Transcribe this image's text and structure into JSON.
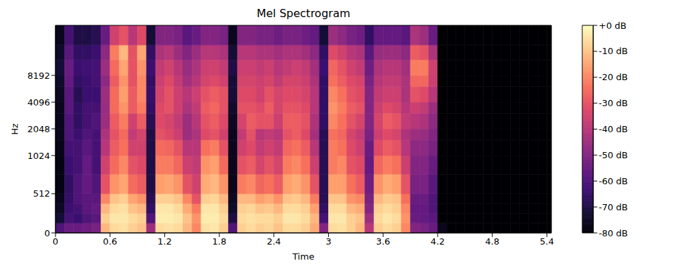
{
  "chart_data": {
    "type": "heatmap",
    "title": "Mel Spectrogram",
    "x_label": "Time",
    "y_label": "Hz",
    "color": "magma",
    "xlim": [
      0,
      5.45
    ],
    "xticks": [
      0,
      0.6,
      1.2,
      1.8,
      2.4,
      3,
      3.6,
      4.2,
      4.8,
      5.4
    ],
    "ylim": [
      0,
      30000
    ],
    "yticks": [
      0,
      512,
      1024,
      2048,
      4096,
      8192
    ],
    "x_bins": [
      0,
      0.1,
      0.2,
      0.3,
      0.4,
      0.5,
      0.6,
      0.7,
      0.8,
      0.9,
      1.0,
      1.1,
      1.2,
      1.3,
      1.4,
      1.5,
      1.6,
      1.7,
      1.8,
      1.9,
      2.0,
      2.1,
      2.2,
      2.3,
      2.4,
      2.5,
      2.6,
      2.7,
      2.8,
      2.9,
      3.0,
      3.1,
      3.2,
      3.3,
      3.4,
      3.5,
      3.6,
      3.7,
      3.8,
      3.9,
      4.0,
      4.1,
      4.2,
      4.3,
      4.4,
      4.5,
      4.6,
      4.7,
      4.8,
      4.9,
      5.0,
      5.1,
      5.2,
      5.3,
      5.4,
      5.45
    ],
    "y_bins": [
      0,
      128,
      256,
      384,
      512,
      768,
      1024,
      1536,
      2048,
      3072,
      4096,
      6144,
      8192,
      12288,
      18000,
      30000
    ],
    "cells": [
      [
        -60,
        -72,
        -75,
        -76,
        -78,
        -78,
        -77,
        -76,
        -76,
        -76,
        -75,
        -74,
        -72,
        -74,
        -76
      ],
      [
        -55,
        -62,
        -64,
        -65,
        -66,
        -64,
        -62,
        -60,
        -60,
        -58,
        -58,
        -56,
        -55,
        -58,
        -62
      ],
      [
        -55,
        -64,
        -62,
        -60,
        -60,
        -62,
        -62,
        -64,
        -66,
        -66,
        -68,
        -66,
        -64,
        -66,
        -70
      ],
      [
        -54,
        -60,
        -58,
        -58,
        -56,
        -56,
        -58,
        -60,
        -62,
        -62,
        -64,
        -64,
        -63,
        -66,
        -70
      ],
      [
        -52,
        -58,
        -56,
        -58,
        -60,
        -62,
        -62,
        -62,
        -60,
        -62,
        -64,
        -62,
        -62,
        -64,
        -68
      ],
      [
        -12,
        -8,
        -12,
        -20,
        -30,
        -35,
        -40,
        -42,
        -45,
        -46,
        -45,
        -48,
        -45,
        -48,
        -55
      ],
      [
        -6,
        -4,
        -6,
        -10,
        -18,
        -25,
        -28,
        -30,
        -28,
        -25,
        -25,
        -28,
        -25,
        -22,
        -35
      ],
      [
        -5,
        -4,
        -5,
        -8,
        -15,
        -20,
        -24,
        -25,
        -22,
        -18,
        -16,
        -18,
        -15,
        -12,
        -30
      ],
      [
        -8,
        -6,
        -10,
        -15,
        -25,
        -30,
        -35,
        -38,
        -35,
        -28,
        -28,
        -30,
        -30,
        -30,
        -40
      ],
      [
        -10,
        -8,
        -12,
        -18,
        -28,
        -32,
        -35,
        -34,
        -28,
        -22,
        -20,
        -20,
        -18,
        -15,
        -32
      ],
      [
        -45,
        -60,
        -66,
        -68,
        -70,
        -70,
        -70,
        -70,
        -68,
        -66,
        -65,
        -66,
        -64,
        -66,
        -72
      ],
      [
        -6,
        -3,
        -4,
        -8,
        -16,
        -22,
        -25,
        -30,
        -32,
        -32,
        -34,
        -36,
        -38,
        -42,
        -50
      ],
      [
        -5,
        -3,
        -4,
        -8,
        -15,
        -22,
        -26,
        -32,
        -34,
        -30,
        -30,
        -32,
        -35,
        -40,
        -50
      ],
      [
        -6,
        -4,
        -6,
        -10,
        -18,
        -26,
        -30,
        -36,
        -38,
        -36,
        -36,
        -38,
        -40,
        -45,
        -52
      ],
      [
        -12,
        -10,
        -14,
        -20,
        -30,
        -36,
        -40,
        -45,
        -45,
        -42,
        -40,
        -44,
        -46,
        -50,
        -58
      ],
      [
        -20,
        -18,
        -22,
        -30,
        -35,
        -38,
        -40,
        -42,
        -40,
        -38,
        -36,
        -40,
        -42,
        -45,
        -55
      ],
      [
        -5,
        -3,
        -4,
        -8,
        -14,
        -18,
        -24,
        -32,
        -30,
        -28,
        -30,
        -34,
        -36,
        -40,
        -50
      ],
      [
        -4,
        -3,
        -4,
        -7,
        -12,
        -16,
        -22,
        -30,
        -28,
        -26,
        -28,
        -32,
        -35,
        -40,
        -50
      ],
      [
        -8,
        -6,
        -8,
        -12,
        -18,
        -25,
        -30,
        -35,
        -32,
        -30,
        -30,
        -35,
        -38,
        -42,
        -52
      ],
      [
        -60,
        -70,
        -74,
        -75,
        -76,
        -76,
        -76,
        -76,
        -75,
        -74,
        -72,
        -72,
        -70,
        -72,
        -76
      ],
      [
        -8,
        -6,
        -8,
        -12,
        -22,
        -30,
        -35,
        -38,
        -34,
        -30,
        -32,
        -34,
        -36,
        -40,
        -50
      ],
      [
        -6,
        -5,
        -7,
        -12,
        -20,
        -28,
        -32,
        -30,
        -28,
        -30,
        -32,
        -34,
        -36,
        -40,
        -50
      ],
      [
        -8,
        -6,
        -10,
        -16,
        -26,
        -34,
        -38,
        -40,
        -30,
        -32,
        -35,
        -36,
        -38,
        -42,
        -52
      ],
      [
        -7,
        -6,
        -9,
        -14,
        -24,
        -30,
        -35,
        -38,
        -30,
        -28,
        -30,
        -34,
        -36,
        -42,
        -52
      ],
      [
        -10,
        -8,
        -12,
        -18,
        -28,
        -34,
        -38,
        -40,
        -36,
        -34,
        -34,
        -38,
        -40,
        -44,
        -54
      ],
      [
        -6,
        -4,
        -6,
        -10,
        -16,
        -22,
        -26,
        -30,
        -28,
        -30,
        -32,
        -34,
        -38,
        -42,
        -52
      ],
      [
        -6,
        -4,
        -6,
        -9,
        -14,
        -20,
        -24,
        -28,
        -28,
        -30,
        -32,
        -34,
        -36,
        -42,
        -52
      ],
      [
        -8,
        -6,
        -8,
        -12,
        -18,
        -24,
        -28,
        -32,
        -30,
        -32,
        -34,
        -36,
        -38,
        -44,
        -54
      ],
      [
        -14,
        -12,
        -16,
        -22,
        -30,
        -36,
        -40,
        -44,
        -42,
        -40,
        -40,
        -42,
        -44,
        -48,
        -56
      ],
      [
        -50,
        -62,
        -66,
        -68,
        -68,
        -68,
        -68,
        -68,
        -66,
        -66,
        -66,
        -66,
        -64,
        -66,
        -72
      ],
      [
        -6,
        -4,
        -6,
        -10,
        -16,
        -22,
        -22,
        -24,
        -20,
        -18,
        -20,
        -24,
        -26,
        -32,
        -45
      ],
      [
        -5,
        -4,
        -6,
        -10,
        -16,
        -20,
        -24,
        -26,
        -24,
        -22,
        -24,
        -28,
        -30,
        -35,
        -48
      ],
      [
        -8,
        -8,
        -12,
        -18,
        -24,
        -30,
        -32,
        -34,
        -30,
        -28,
        -30,
        -32,
        -35,
        -40,
        -52
      ],
      [
        -12,
        -10,
        -14,
        -20,
        -28,
        -32,
        -36,
        -38,
        -34,
        -30,
        -32,
        -34,
        -38,
        -42,
        -54
      ],
      [
        -40,
        -45,
        -50,
        -52,
        -54,
        -56,
        -55,
        -52,
        -50,
        -50,
        -50,
        -52,
        -54,
        -58,
        -66
      ],
      [
        -8,
        -6,
        -8,
        -12,
        -18,
        -26,
        -32,
        -36,
        -34,
        -36,
        -38,
        -40,
        -42,
        -46,
        -56
      ],
      [
        -6,
        -4,
        -6,
        -9,
        -14,
        -22,
        -28,
        -32,
        -28,
        -32,
        -36,
        -38,
        -40,
        -45,
        -56
      ],
      [
        -8,
        -6,
        -8,
        -10,
        -16,
        -24,
        -30,
        -34,
        -30,
        -34,
        -36,
        -38,
        -40,
        -45,
        -56
      ],
      [
        -20,
        -18,
        -20,
        -24,
        -30,
        -36,
        -40,
        -42,
        -38,
        -40,
        -42,
        -42,
        -44,
        -48,
        -58
      ],
      [
        -50,
        -55,
        -56,
        -55,
        -52,
        -50,
        -48,
        -45,
        -40,
        -36,
        -30,
        -26,
        -22,
        -28,
        -42
      ],
      [
        -52,
        -56,
        -56,
        -55,
        -52,
        -50,
        -48,
        -46,
        -42,
        -38,
        -32,
        -26,
        -22,
        -30,
        -45
      ],
      [
        -55,
        -58,
        -60,
        -60,
        -58,
        -55,
        -52,
        -50,
        -48,
        -45,
        -40,
        -36,
        -35,
        -42,
        -55
      ],
      [
        -76,
        -80,
        -80,
        -80,
        -80,
        -80,
        -80,
        -80,
        -80,
        -80,
        -80,
        -80,
        -80,
        -80,
        -80
      ],
      [
        -80,
        -80,
        -80,
        -80,
        -80,
        -80,
        -80,
        -80,
        -80,
        -80,
        -80,
        -80,
        -80,
        -80,
        -80
      ],
      [
        -80,
        -80,
        -80,
        -80,
        -80,
        -80,
        -80,
        -80,
        -80,
        -80,
        -80,
        -80,
        -80,
        -80,
        -80
      ],
      [
        -80,
        -80,
        -80,
        -80,
        -80,
        -80,
        -80,
        -80,
        -80,
        -80,
        -80,
        -80,
        -80,
        -80,
        -80
      ],
      [
        -80,
        -80,
        -80,
        -80,
        -80,
        -80,
        -80,
        -80,
        -80,
        -80,
        -80,
        -80,
        -80,
        -80,
        -80
      ],
      [
        -80,
        -80,
        -80,
        -80,
        -80,
        -80,
        -80,
        -80,
        -80,
        -80,
        -80,
        -80,
        -80,
        -80,
        -80
      ],
      [
        -80,
        -80,
        -80,
        -80,
        -80,
        -80,
        -80,
        -80,
        -80,
        -80,
        -80,
        -80,
        -80,
        -80,
        -80
      ],
      [
        -80,
        -80,
        -80,
        -80,
        -80,
        -80,
        -80,
        -80,
        -80,
        -80,
        -80,
        -80,
        -80,
        -80,
        -80
      ],
      [
        -80,
        -80,
        -80,
        -80,
        -80,
        -80,
        -80,
        -80,
        -80,
        -80,
        -80,
        -80,
        -80,
        -80,
        -80
      ],
      [
        -80,
        -80,
        -80,
        -80,
        -80,
        -80,
        -80,
        -80,
        -80,
        -80,
        -80,
        -80,
        -80,
        -80,
        -80
      ],
      [
        -80,
        -80,
        -80,
        -80,
        -80,
        -80,
        -80,
        -80,
        -80,
        -80,
        -80,
        -80,
        -80,
        -80,
        -80
      ],
      [
        -80,
        -80,
        -80,
        -80,
        -80,
        -80,
        -80,
        -80,
        -80,
        -80,
        -80,
        -80,
        -80,
        -80,
        -80
      ],
      [
        -80,
        -80,
        -80,
        -80,
        -80,
        -80,
        -80,
        -80,
        -80,
        -80,
        -80,
        -80,
        -80,
        -80,
        -80
      ]
    ],
    "colorbar": {
      "range": [
        -80,
        0
      ],
      "ticks": [
        {
          "value": 0,
          "label": "+0 dB"
        },
        {
          "value": -10,
          "label": "-10 dB"
        },
        {
          "value": -20,
          "label": "-20 dB"
        },
        {
          "value": -30,
          "label": "-30 dB"
        },
        {
          "value": -40,
          "label": "-40 dB"
        },
        {
          "value": -50,
          "label": "-50 dB"
        },
        {
          "value": -60,
          "label": "-60 dB"
        },
        {
          "value": -70,
          "label": "-70 dB"
        },
        {
          "value": -80,
          "label": "-80 dB"
        }
      ]
    }
  }
}
